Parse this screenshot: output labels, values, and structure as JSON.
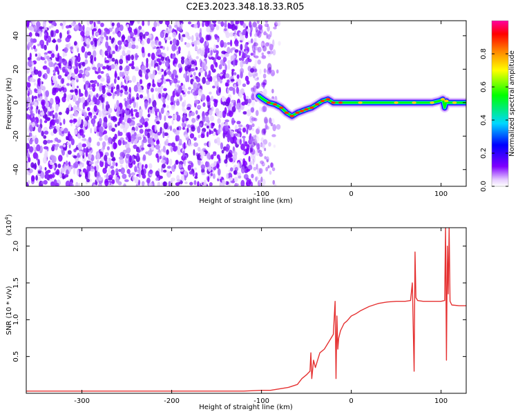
{
  "title": "C2E3.2023.348.18.33.R05",
  "chart_data": [
    {
      "type": "heatmap",
      "xlabel": "Height of straight line (km)",
      "ylabel": "Frequency (Hz)",
      "xlim": [
        -362,
        128
      ],
      "ylim": [
        -50,
        49
      ],
      "x_ticks": [
        -300,
        -200,
        -100,
        0,
        100
      ],
      "x_tick_labels": [
        "-300",
        "-200",
        "-100",
        "0",
        "100"
      ],
      "y_ticks": [
        -40,
        -20,
        0,
        20,
        40
      ],
      "y_tick_labels": [
        "-40",
        "-20",
        "0",
        "20",
        "40"
      ],
      "noise_region_x": [
        -362,
        -80
      ],
      "signal_trace": {
        "x": [
          -103,
          -98,
          -92,
          -85,
          -78,
          -72,
          -66,
          -60,
          -55,
          -50,
          -44,
          -38,
          -32,
          -26,
          -20,
          -12,
          -5,
          0,
          10,
          30,
          50,
          60,
          70,
          80,
          90,
          98,
          102,
          104,
          106,
          108,
          115,
          128
        ],
        "y": [
          4,
          2,
          0,
          -1,
          -3,
          -6,
          -8,
          -6,
          -5,
          -4,
          -3,
          -1,
          1,
          2,
          0,
          0,
          0,
          0,
          0,
          0,
          0,
          0,
          0,
          0,
          0,
          1,
          2,
          -3,
          1,
          0,
          0,
          0
        ]
      },
      "colorbar": {
        "label": "Normalized spectral amplitude",
        "range": [
          0,
          1
        ],
        "ticks": [
          0.0,
          0.2,
          0.4,
          0.6,
          0.8
        ],
        "tick_labels": [
          "0.0",
          "0.2",
          "0.4",
          "0.6",
          "0.8"
        ],
        "colormap": "rainbow-purple-to-magenta"
      }
    },
    {
      "type": "line",
      "xlabel": "Height of straight line (km)",
      "ylabel": "SNR (10 * v/v)",
      "multiplier_label": "(x10",
      "multiplier_exponent": "4",
      "multiplier_close": ")",
      "xlim": [
        -362,
        128
      ],
      "ylim": [
        0,
        2.25
      ],
      "x_ticks": [
        -300,
        -200,
        -100,
        0,
        100
      ],
      "x_tick_labels": [
        "-300",
        "-200",
        "-100",
        "0",
        "100"
      ],
      "y_ticks": [
        0.5,
        1.0,
        1.5,
        2.0
      ],
      "y_tick_labels": [
        "0.5",
        "1.0",
        "1.5",
        "2.0"
      ],
      "color": "#e53030",
      "series": [
        {
          "x": [
            -362,
            -300,
            -200,
            -120,
            -100,
            -90,
            -80,
            -70,
            -60,
            -55,
            -50,
            -46,
            -45,
            -44,
            -42,
            -40,
            -35,
            -30,
            -25,
            -20,
            -18,
            -17,
            -16,
            -15,
            -14,
            -12,
            -10,
            -8,
            -5,
            0,
            5,
            10,
            20,
            30,
            40,
            50,
            60,
            66,
            68,
            70,
            71,
            72,
            74,
            80,
            90,
            100,
            104,
            105,
            106,
            107,
            108,
            109,
            110,
            112,
            120,
            128
          ],
          "y": [
            0.03,
            0.03,
            0.03,
            0.03,
            0.04,
            0.04,
            0.06,
            0.08,
            0.12,
            0.2,
            0.25,
            0.3,
            0.55,
            0.2,
            0.45,
            0.35,
            0.55,
            0.6,
            0.7,
            0.8,
            1.25,
            0.2,
            1.05,
            0.6,
            0.75,
            0.85,
            0.9,
            0.95,
            0.98,
            1.05,
            1.08,
            1.12,
            1.18,
            1.22,
            1.24,
            1.25,
            1.25,
            1.26,
            1.5,
            0.3,
            1.92,
            1.3,
            1.26,
            1.25,
            1.25,
            1.25,
            1.26,
            2.25,
            0.45,
            2.0,
            1.35,
            2.25,
            1.25,
            1.2,
            1.19,
            1.19
          ]
        }
      ]
    }
  ]
}
